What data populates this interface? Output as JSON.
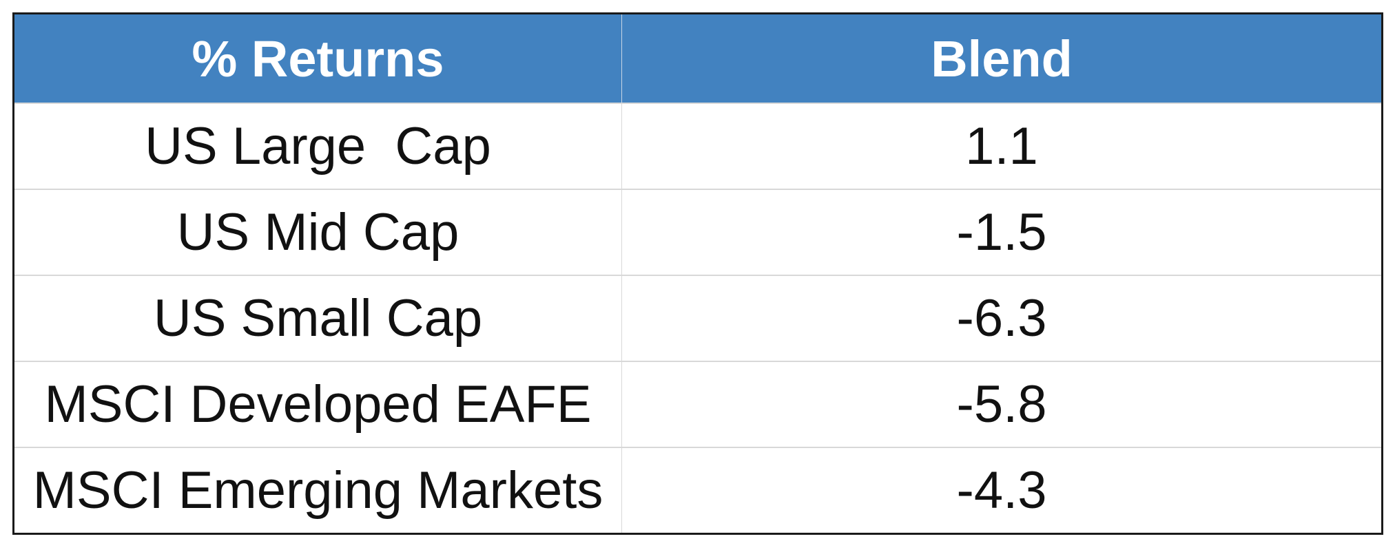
{
  "table": {
    "header": [
      "% Returns",
      "Blend"
    ],
    "rows": [
      [
        "US Large  Cap",
        1.1
      ],
      [
        "US Mid Cap",
        -1.5
      ],
      [
        "US Small Cap",
        -6.3
      ],
      [
        "MSCI Developed EAFE",
        -5.8
      ],
      [
        "MSCI Emerging Markets",
        -4.3
      ]
    ]
  }
}
